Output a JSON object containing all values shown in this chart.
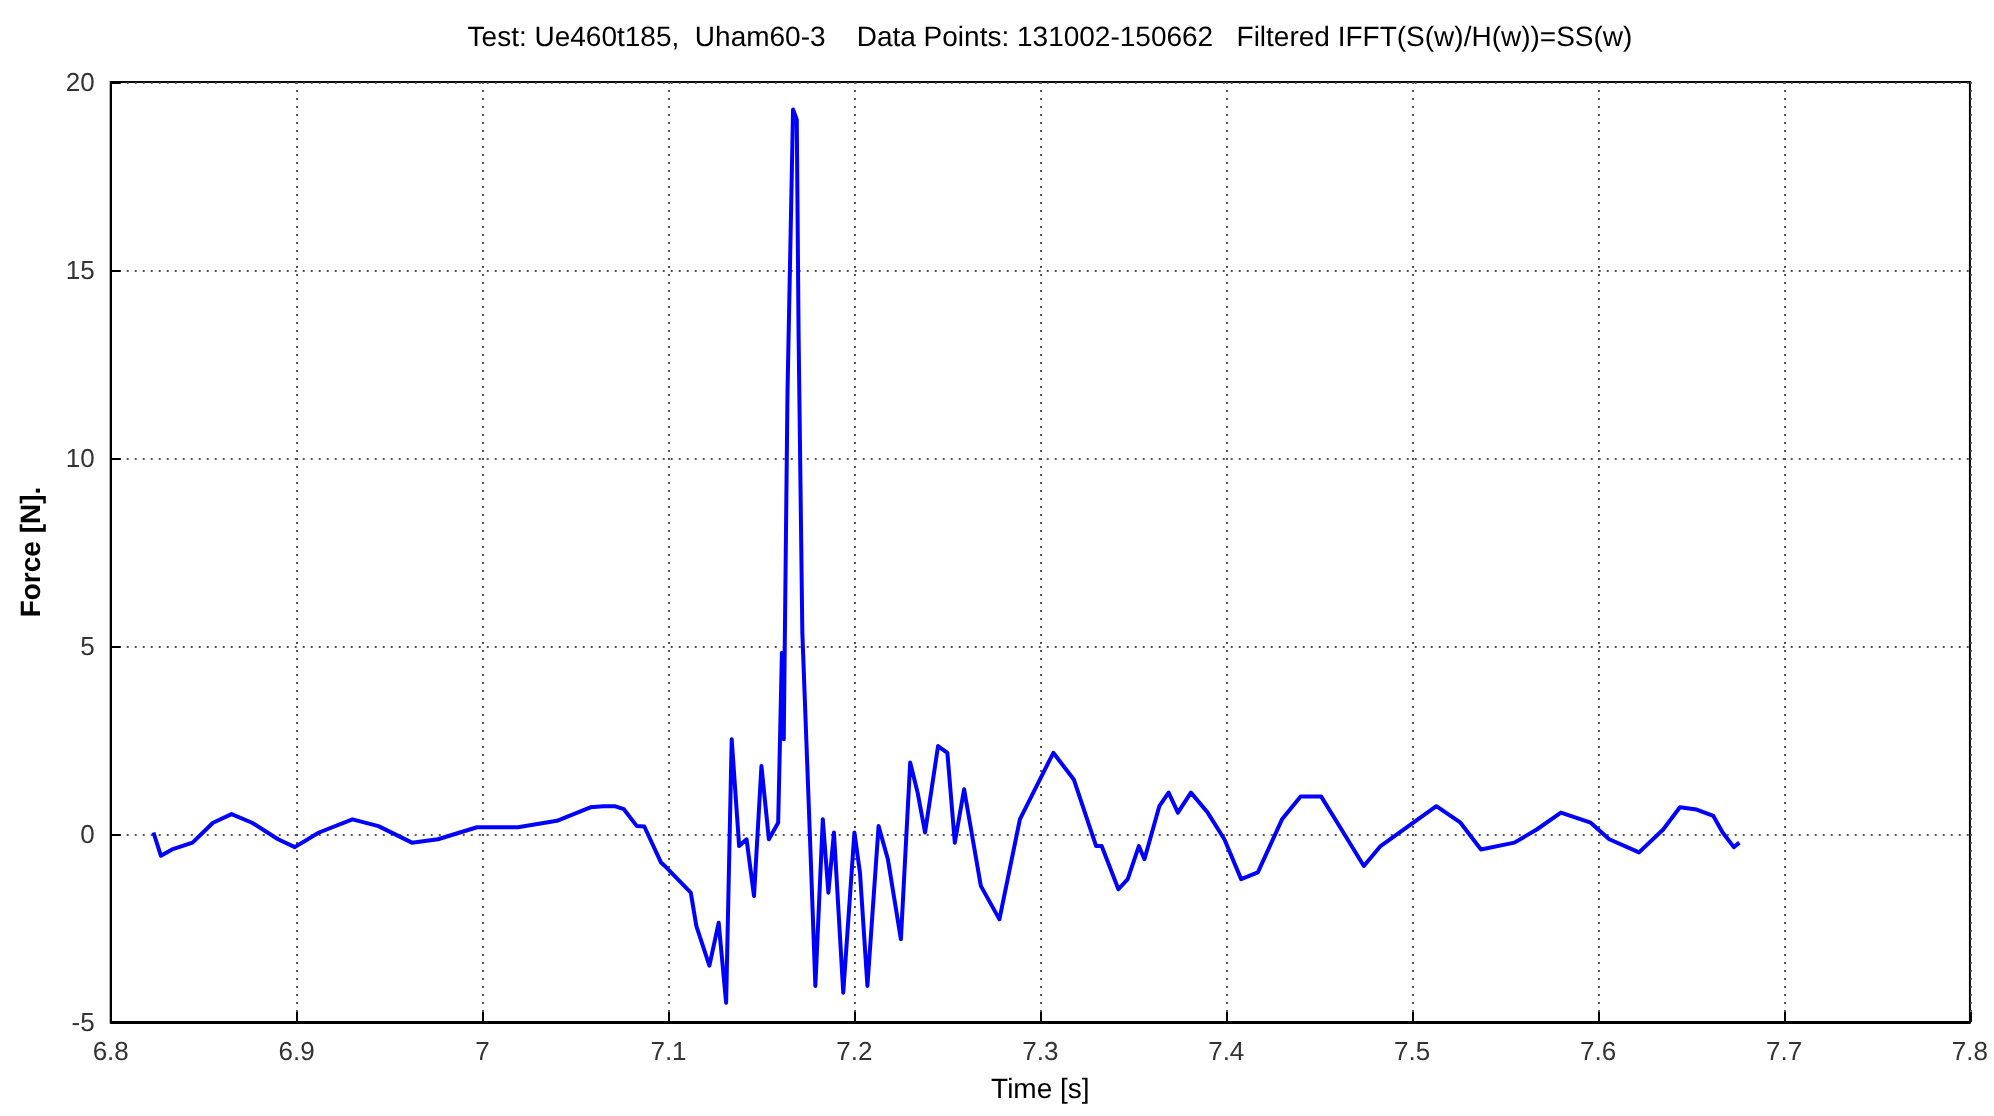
{
  "chart_data": {
    "type": "line",
    "title": "Test: Ue460t185,  Uham60-3    Data Points: 131002-150662   Filtered IFFT(S(w)/H(w))=SS(w)",
    "xlabel": "Time [s]",
    "ylabel": "Force [N].",
    "x": [
      6.823,
      6.827,
      6.833,
      6.844,
      6.855,
      6.865,
      6.876,
      6.89,
      6.899,
      6.912,
      6.93,
      6.944,
      6.962,
      6.976,
      6.997,
      7.019,
      7.04,
      7.058,
      7.065,
      7.071,
      7.076,
      7.083,
      7.087,
      7.096,
      7.098,
      7.112,
      7.115,
      7.122,
      7.127,
      7.131,
      7.134,
      7.138,
      7.142,
      7.146,
      7.15,
      7.154,
      7.159,
      7.161,
      7.162,
      7.164,
      7.167,
      7.169,
      7.17,
      7.172,
      7.176,
      7.179,
      7.183,
      7.186,
      7.189,
      7.194,
      7.2,
      7.203,
      7.207,
      7.213,
      7.218,
      7.225,
      7.23,
      7.234,
      7.238,
      7.245,
      7.25,
      7.254,
      7.259,
      7.268,
      7.278,
      7.289,
      7.307,
      7.318,
      7.33,
      7.333,
      7.342,
      7.347,
      7.353,
      7.356,
      7.364,
      7.369,
      7.374,
      7.381,
      7.39,
      7.399,
      7.408,
      7.417,
      7.43,
      7.44,
      7.451,
      7.462,
      7.474,
      7.483,
      7.498,
      7.513,
      7.526,
      7.537,
      7.555,
      7.567,
      7.58,
      7.596,
      7.606,
      7.622,
      7.635,
      7.644,
      7.653,
      7.662,
      7.667,
      7.673,
      7.676
    ],
    "series": [
      {
        "color": "#0000ff",
        "values": [
          0.04,
          -0.58,
          -0.41,
          -0.23,
          0.3,
          0.53,
          0.3,
          -0.14,
          -0.35,
          0.04,
          0.39,
          0.21,
          -0.23,
          -0.14,
          0.18,
          0.18,
          0.35,
          0.71,
          0.74,
          0.74,
          0.66,
          0.21,
          0.2,
          -0.76,
          -0.85,
          -1.56,
          -2.45,
          -3.5,
          -2.36,
          -4.49,
          2.52,
          -0.32,
          -0.14,
          -1.65,
          1.81,
          -0.14,
          0.3,
          4.82,
          2.52,
          11.7,
          19.27,
          19.0,
          13.2,
          5.35,
          0.04,
          -4.04,
          0.39,
          -1.56,
          0.04,
          -4.22,
          0.04,
          -1.03,
          -4.04,
          0.21,
          -0.67,
          -2.8,
          1.9,
          1.1,
          0.04,
          2.34,
          2.16,
          -0.23,
          1.19,
          -1.38,
          -2.27,
          0.39,
          2.16,
          1.45,
          -0.32,
          -0.32,
          -1.47,
          -1.2,
          -0.32,
          -0.67,
          0.74,
          1.1,
          0.57,
          1.1,
          0.57,
          -0.14,
          -1.2,
          -1.02,
          0.39,
          1.0,
          1.0,
          0.12,
          -0.85,
          -0.32,
          0.21,
          0.74,
          0.3,
          -0.41,
          -0.23,
          0.12,
          0.57,
          0.3,
          -0.14,
          -0.49,
          0.12,
          0.71,
          0.65,
          0.48,
          0.04,
          -0.35,
          -0.23
        ]
      }
    ],
    "xlim": [
      6.8,
      7.8
    ],
    "xticks": [
      6.8,
      6.9,
      7,
      7.1,
      7.2,
      7.3,
      7.4,
      7.5,
      7.6,
      7.7,
      7.8
    ],
    "ylim": [
      -5,
      20
    ],
    "yticks": [
      -5,
      0,
      5,
      10,
      15,
      20
    ],
    "grid": true,
    "marker": "none",
    "line_style": "solid"
  }
}
